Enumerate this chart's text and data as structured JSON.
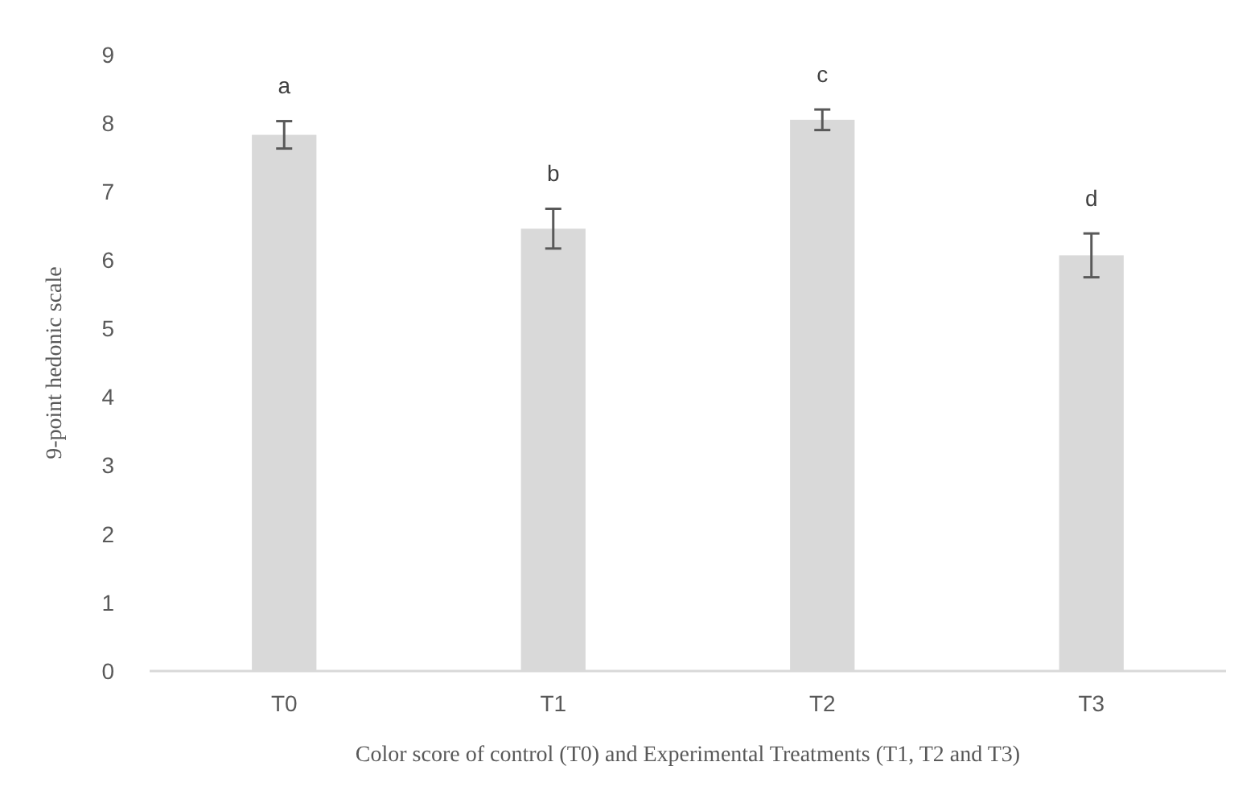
{
  "chart_data": {
    "type": "bar",
    "xlabel": "Color score of control (T0) and Experimental Treatments (T1, T2 and T3)",
    "ylabel": "9-point hedonic scale",
    "categories": [
      "T0",
      "T1",
      "T2",
      "T3"
    ],
    "values": [
      7.83,
      6.46,
      8.05,
      6.07
    ],
    "errors": [
      0.2,
      0.29,
      0.15,
      0.32
    ],
    "color": "#d9d9d9",
    "ylim": [
      0,
      9
    ],
    "yticks": [
      0,
      1,
      2,
      3,
      4,
      5,
      6,
      7,
      8,
      9
    ],
    "grid": false,
    "annotations": [
      "a",
      "b",
      "c",
      "d"
    ]
  }
}
